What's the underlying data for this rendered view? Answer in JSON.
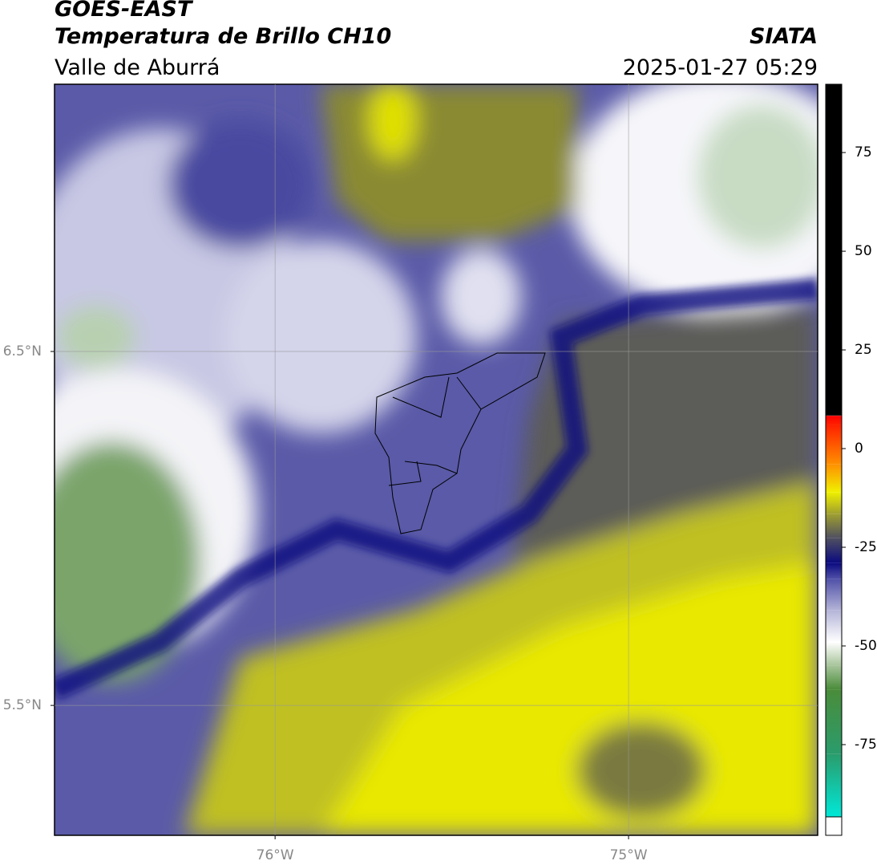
{
  "header": {
    "title": "GOES-EAST",
    "subtitle": "Temperatura de Brillo CH10",
    "region": "Valle de Aburrá",
    "source": "SIATA",
    "datetime": "2025-01-27 05:29"
  },
  "map": {
    "xlim": [
      -76.624,
      -74.465
    ],
    "ylim": [
      5.133,
      7.255
    ],
    "xticks": [
      {
        "value": -76,
        "label": "76°W"
      },
      {
        "value": -75,
        "label": "75°W"
      }
    ],
    "yticks": [
      {
        "value": 5.5,
        "label": "5.5°N"
      },
      {
        "value": 6.5,
        "label": "6.5°N"
      }
    ],
    "grid": true
  },
  "colorbar": {
    "clim": [
      -93.3,
      92.3
    ],
    "ticks": [
      -75,
      -50,
      -25,
      0,
      25,
      50,
      75
    ],
    "colormap": [
      {
        "value": -93.3,
        "color": "#00e8d8"
      },
      {
        "value": -77.4,
        "color": "#2a9c6c"
      },
      {
        "value": -61,
        "color": "#4a8c3a"
      },
      {
        "value": -55,
        "color": "#a6c49a"
      },
      {
        "value": -49,
        "color": "#ffffff"
      },
      {
        "value": -41,
        "color": "#b4b4d8"
      },
      {
        "value": -33,
        "color": "#5050a8"
      },
      {
        "value": -29,
        "color": "#0a0a80"
      },
      {
        "value": -22.6,
        "color": "#505060"
      },
      {
        "value": -16.5,
        "color": "#a0a030"
      },
      {
        "value": -11,
        "color": "#f0f000"
      },
      {
        "value": -4,
        "color": "#ff9000"
      },
      {
        "value": 6,
        "color": "#ff2000"
      },
      {
        "value": 8.3,
        "color": "#ff0000"
      },
      {
        "value": 8.4,
        "color": "#000000"
      }
    ]
  }
}
